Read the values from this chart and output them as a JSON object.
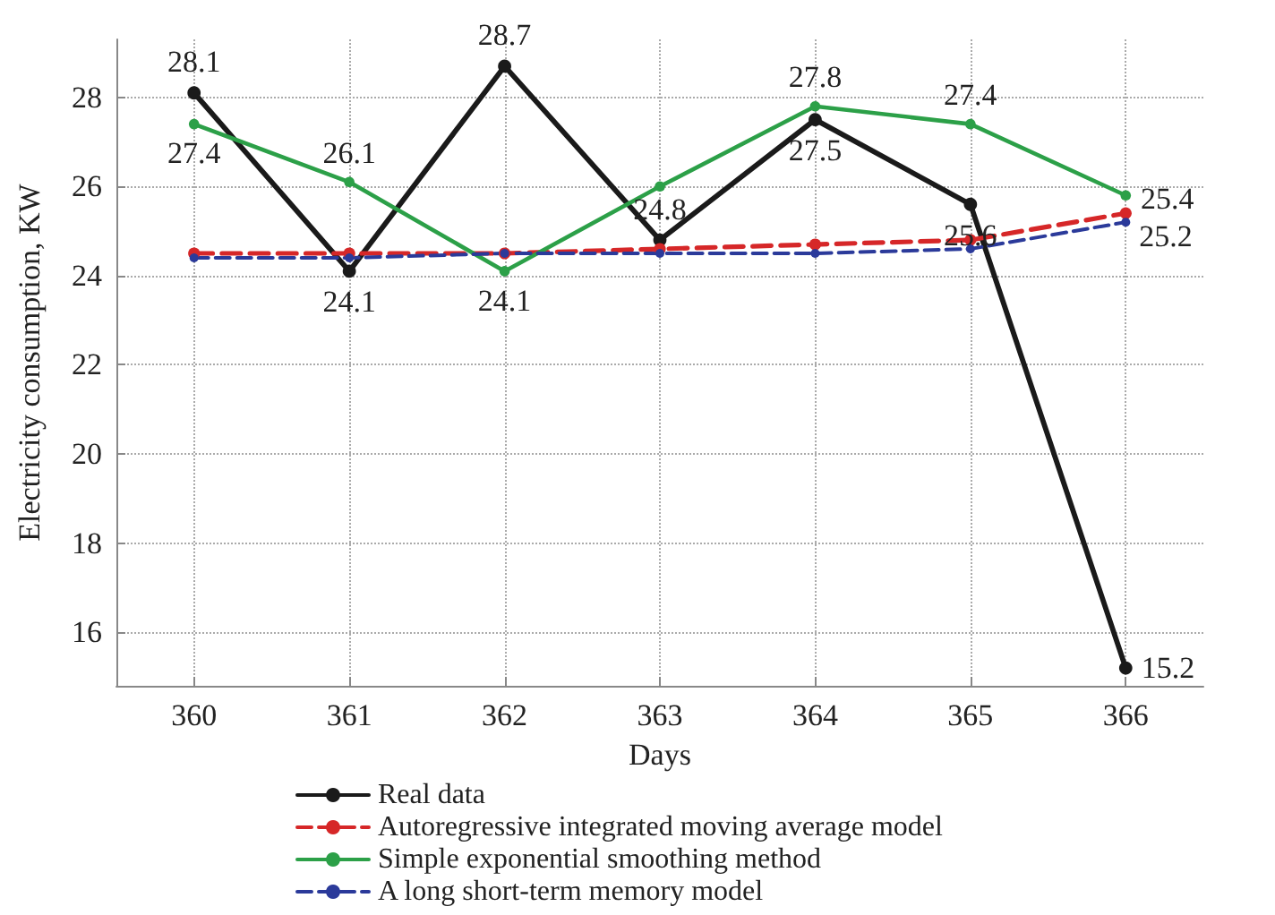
{
  "chart_data": {
    "type": "line",
    "xlabel": "Days",
    "ylabel": "Electricity consumption, KW",
    "x": [
      360,
      361,
      362,
      363,
      364,
      365,
      366
    ],
    "xlim": [
      359.5,
      366.5
    ],
    "xticks": [
      360,
      361,
      362,
      363,
      364,
      365,
      366
    ],
    "ylim": [
      14.8,
      29.3
    ],
    "yticks": [
      16,
      18,
      20,
      22,
      24,
      26,
      28
    ],
    "grid": true,
    "legend": "bottom",
    "marker": "circle",
    "series": [
      {
        "name": "Real data",
        "color": "#1a1a1a",
        "line_style": "solid",
        "values": [
          28.1,
          24.1,
          28.7,
          24.8,
          27.5,
          25.6,
          15.2
        ],
        "value_labels": [
          "28.1",
          "24.1",
          "28.7",
          "24.8",
          "27.5",
          "25.6",
          "15.2"
        ]
      },
      {
        "name": "Autoregressive integrated moving average model",
        "color": "#d62728",
        "line_style": "dashed",
        "values": [
          24.5,
          24.5,
          24.5,
          24.6,
          24.7,
          24.8,
          25.4
        ],
        "value_labels": [
          null,
          null,
          null,
          null,
          null,
          null,
          "25.4"
        ]
      },
      {
        "name": "Simple exponential smoothing method",
        "color": "#2ca048",
        "line_style": "solid",
        "values": [
          27.4,
          26.1,
          24.1,
          26.0,
          27.8,
          27.4,
          25.8
        ],
        "value_labels": [
          "27.4",
          "26.1",
          "24.1",
          null,
          "27.8",
          "27.4",
          null
        ]
      },
      {
        "name": "A long short-term memory model",
        "color": "#2b3a9a",
        "line_style": "dashed",
        "values": [
          24.4,
          24.4,
          24.5,
          24.5,
          24.5,
          24.6,
          25.2
        ],
        "value_labels": [
          null,
          null,
          null,
          null,
          null,
          null,
          "25.2"
        ]
      }
    ]
  }
}
